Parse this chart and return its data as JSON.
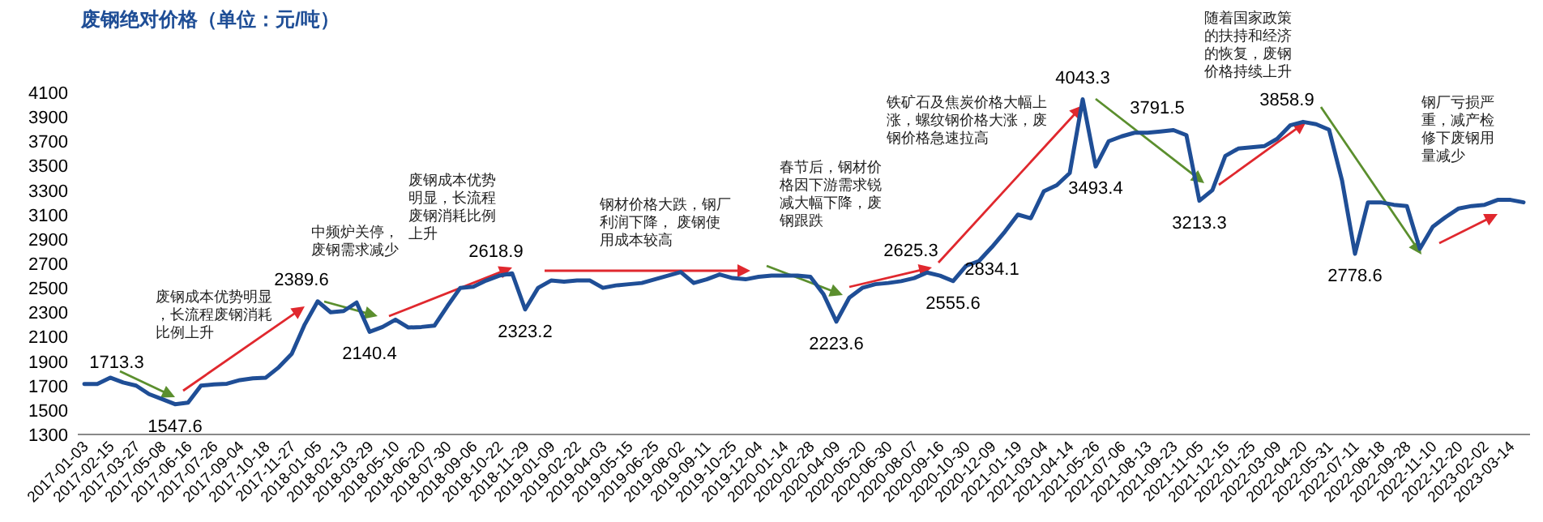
{
  "chart_data": {
    "type": "line",
    "title": "废钢绝对价格（单位：元/吨）",
    "categories": [
      "2017-01-03",
      null,
      "2017-02-15",
      null,
      "2017-03-27",
      null,
      "2017-05-08",
      null,
      "2017-06-16",
      null,
      "2017-07-26",
      null,
      "2017-09-04",
      null,
      "2017-10-18",
      null,
      "2017-11-27",
      null,
      "2018-01-05",
      null,
      "2018-02-13",
      null,
      "2018-03-29",
      null,
      "2018-05-10",
      null,
      "2018-06-20",
      null,
      "2018-07-30",
      null,
      "2018-09-06",
      null,
      "2018-10-22",
      null,
      "2018-11-29",
      null,
      "2019-01-09",
      null,
      "2019-02-22",
      null,
      "2019-04-03",
      null,
      "2019-05-15",
      null,
      "2019-06-25",
      null,
      "2019-08-02",
      null,
      "2019-09-11",
      null,
      "2019-10-25",
      null,
      "2019-12-04",
      null,
      "2020-01-14",
      null,
      "2020-02-28",
      null,
      "2020-04-09",
      null,
      "2020-05-20",
      null,
      "2020-06-30",
      null,
      "2020-08-07",
      null,
      "2020-09-16",
      null,
      "2020-10-30",
      null,
      "2020-12-09",
      null,
      "2021-01-19",
      null,
      "2021-03-04",
      null,
      "2021-04-14",
      null,
      "2021-05-26",
      null,
      "2021-07-06",
      null,
      "2021-08-13",
      null,
      "2021-09-23",
      null,
      "2021-11-05",
      null,
      "2021-12-15",
      null,
      "2022-01-25",
      null,
      "2022-03-09",
      null,
      "2022-04-20",
      null,
      "2022-05-31",
      null,
      "2022-07-11",
      null,
      "2022-08-18",
      null,
      "2022-09-28",
      null,
      "2022-11-10",
      null,
      "2022-12-20",
      null,
      "2023-02-02",
      null,
      "2023-03-14",
      null
    ],
    "series": [
      {
        "color": "#1f4e96",
        "values": [
          1713.3,
          1713,
          1765,
          1725,
          1700,
          1630,
          1590,
          1547.6,
          1560,
          1700,
          1710,
          1715,
          1745,
          1760,
          1765,
          1850,
          1960,
          2200,
          2389.6,
          2300,
          2310,
          2380,
          2140.4,
          2180,
          2240,
          2175,
          2180,
          2190,
          2350,
          2500,
          2510,
          2560,
          2600,
          2618.9,
          2323.2,
          2500,
          2560,
          2550,
          2560,
          2560,
          2500,
          2520,
          2530,
          2540,
          2570,
          2600,
          2630,
          2540,
          2570,
          2610,
          2580,
          2570,
          2590,
          2600,
          2600,
          2600,
          2590,
          2450,
          2223.6,
          2420,
          2500,
          2530,
          2540,
          2555,
          2580,
          2625.3,
          2600,
          2555.6,
          2680,
          2720,
          2834.1,
          2960,
          3100,
          3070,
          3290,
          3340,
          3440,
          4043.3,
          3493.4,
          3700,
          3740,
          3770,
          3770,
          3780,
          3791.5,
          3750,
          3213.3,
          3300,
          3580,
          3640,
          3650,
          3660,
          3720,
          3830,
          3858.9,
          3840,
          3795,
          3380,
          2778.6,
          3200,
          3200,
          3180,
          3170,
          2820,
          3000,
          3080,
          3150,
          3170,
          3180,
          3220,
          3220,
          3200
        ],
        "value_labels": [
          "1713.3",
          null,
          null,
          null,
          null,
          null,
          null,
          "1547.6",
          null,
          null,
          null,
          null,
          null,
          null,
          null,
          null,
          null,
          null,
          "2389.6",
          null,
          null,
          null,
          "2140.4",
          null,
          null,
          null,
          null,
          null,
          null,
          null,
          null,
          null,
          null,
          "2618.9",
          "2323.2",
          null,
          null,
          null,
          null,
          null,
          null,
          null,
          null,
          null,
          null,
          null,
          null,
          null,
          null,
          null,
          null,
          null,
          null,
          null,
          null,
          null,
          null,
          null,
          "2223.6",
          null,
          null,
          null,
          null,
          null,
          null,
          "2625.3",
          null,
          "2555.6",
          null,
          null,
          "2834.1",
          null,
          null,
          null,
          null,
          null,
          null,
          "4043.3",
          "3493.4",
          null,
          null,
          null,
          null,
          null,
          "3791.5",
          null,
          "3213.3",
          null,
          null,
          null,
          null,
          null,
          null,
          null,
          "3858.9",
          null,
          null,
          null,
          "2778.6",
          null,
          null,
          null,
          null,
          null,
          null,
          null,
          null,
          null,
          null,
          null,
          null,
          null
        ]
      }
    ],
    "ylim": [
      1300,
      4100
    ],
    "yticks": [
      1300,
      1500,
      1700,
      1900,
      2100,
      2300,
      2500,
      2700,
      2900,
      3100,
      3300,
      3500,
      3700,
      3900,
      4100
    ],
    "annotations": [
      "废钢成本优势明显，长流程废钢消耗比例上升",
      "中频炉关停，废钢需求减少",
      "废钢成本优势明显，长流程废钢消耗比例上升",
      "钢材价格大跌，钢厂利润下降， 废钢使用成本较高",
      "春节后，钢材价格因下游需求锐减大幅下降，废钢跟跌",
      "铁矿石及焦炭价格大幅上涨，螺纹钢价格大涨，废钢价格急速拉高",
      "随着国家政策的扶持和经济的恢复，废钢价格持续上升",
      "钢厂亏损严重，减产检修下废钢用量减少"
    ]
  }
}
